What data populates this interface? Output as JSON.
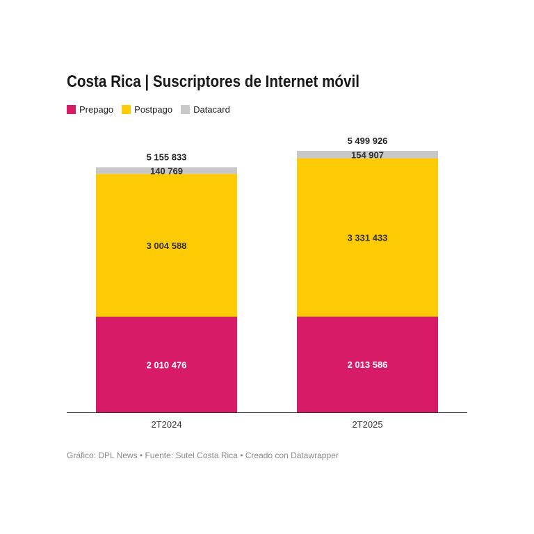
{
  "chart_data": {
    "type": "bar",
    "stacked": true,
    "title": "Costa Rica | Suscriptores de Internet móvil",
    "categories": [
      "2T2024",
      "2T2025"
    ],
    "series": [
      {
        "name": "Prepago",
        "color": "#d81b67",
        "values": [
          2010476,
          2013586
        ],
        "labels": [
          "2 010 476",
          "2 013 586"
        ],
        "label_color": "#ffffff"
      },
      {
        "name": "Postpago",
        "color": "#fecb04",
        "values": [
          3004588,
          3331433
        ],
        "labels": [
          "3 004 588",
          "3 331 433"
        ],
        "label_color": "#333333"
      },
      {
        "name": "Datacard",
        "color": "#c8c8c8",
        "values": [
          140769,
          154907
        ],
        "labels": [
          "140 769",
          "154 907"
        ],
        "label_color": "#333333"
      }
    ],
    "totals": [
      5155833,
      5499926
    ],
    "total_labels": [
      "5 155 833",
      "5 499 926"
    ],
    "legend_position": "top-left",
    "grid": false
  },
  "footer": "Gráfico: DPL News • Fuente: Sutel Costa Rica • Creado con Datawrapper"
}
